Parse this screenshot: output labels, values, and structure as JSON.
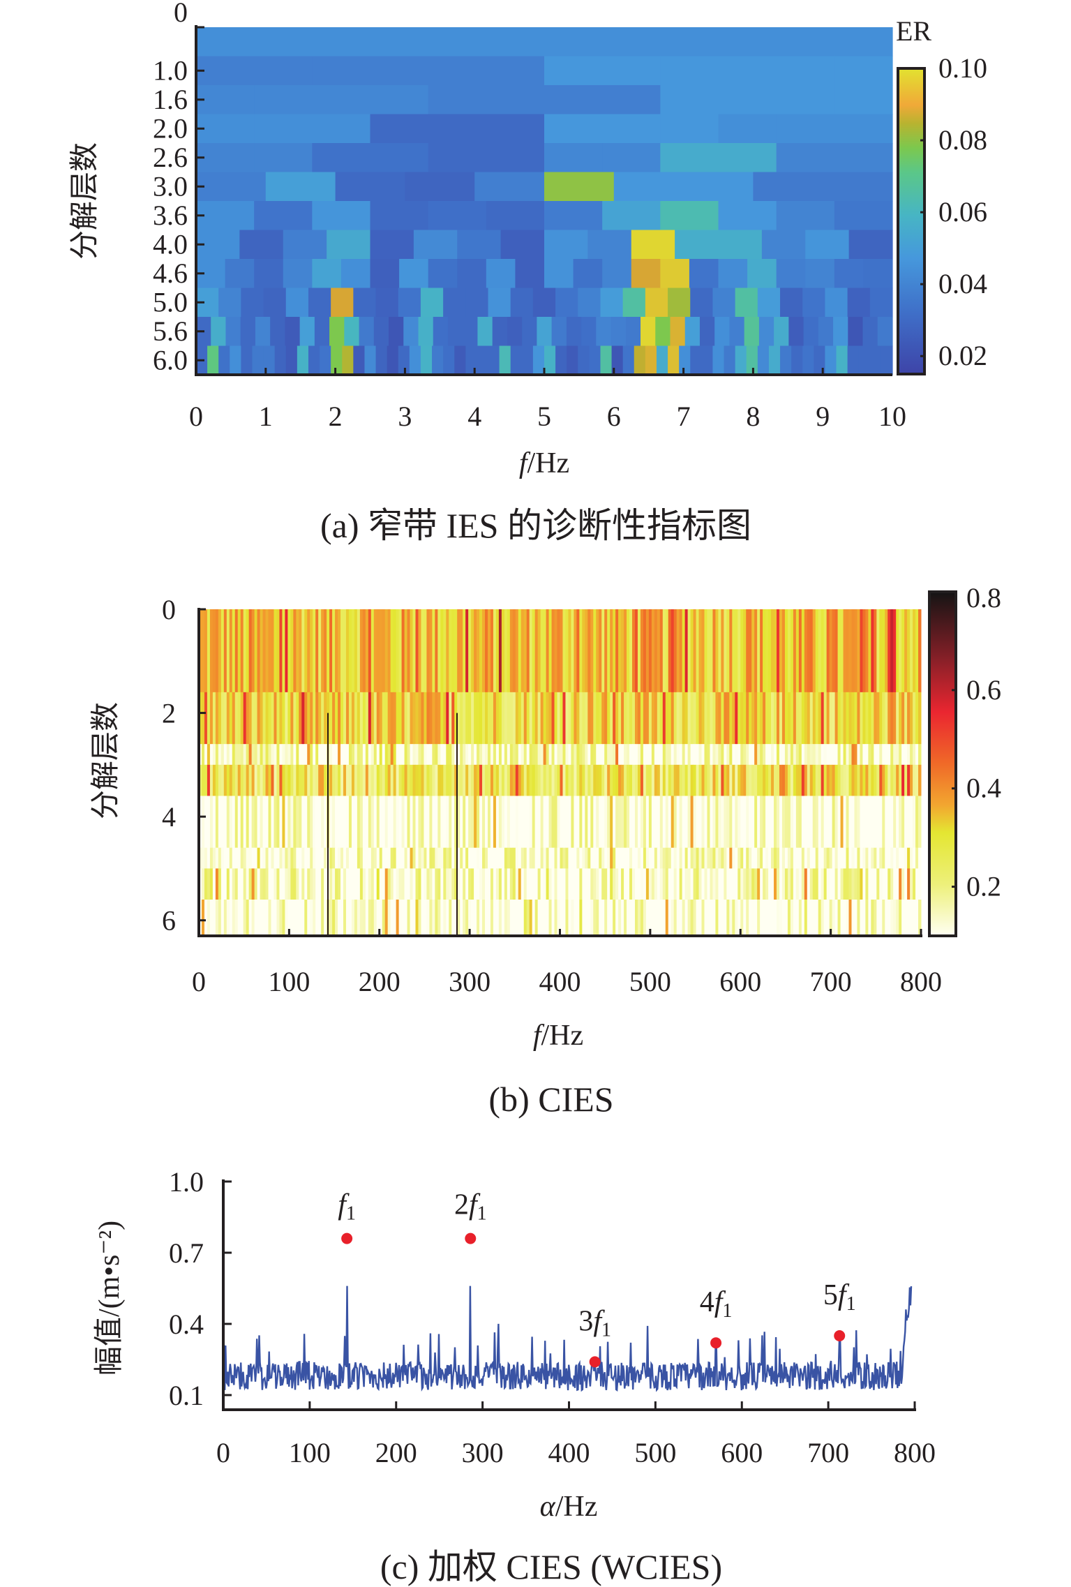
{
  "chart_data": [
    {
      "id": "a",
      "type": "heatmap",
      "caption": "(a) 窄带 IES 的诊断性指标图",
      "xlabel_italic": "f",
      "xlabel_rest": "/Hz",
      "ylabel": "分解层数",
      "xlim": [
        0,
        10
      ],
      "x_ticks": [
        "0",
        "1",
        "2",
        "3",
        "4",
        "5",
        "6",
        "7",
        "8",
        "9",
        "10"
      ],
      "y_ticks": [
        "0",
        "1.0",
        "1.6",
        "2.0",
        "2.6",
        "3.0",
        "3.6",
        "4.0",
        "4.6",
        "5.0",
        "5.6",
        "6.0"
      ],
      "colorbar": {
        "title": "ER",
        "range": [
          0.015,
          0.1
        ],
        "ticks": [
          "0.02",
          "0.04",
          "0.06",
          "0.08",
          "0.10"
        ],
        "tick_values": [
          0.02,
          0.04,
          0.06,
          0.08,
          0.1
        ],
        "colormap": "parula"
      },
      "rows": [
        {
          "level": "0",
          "values": [
            0.044
          ]
        },
        {
          "level": "1.0",
          "values": [
            0.038,
            0.038,
            0.038,
            0.038,
            0.038,
            0.038,
            0.047,
            0.047,
            0.047,
            0.047,
            0.047,
            0.047
          ]
        },
        {
          "level": "1.6",
          "values": [
            0.041,
            0.041,
            0.041,
            0.041,
            0.038,
            0.038,
            0.038,
            0.038,
            0.047,
            0.047,
            0.047,
            0.047
          ]
        },
        {
          "level": "2.0",
          "values": [
            0.044,
            0.044,
            0.044,
            0.03,
            0.03,
            0.03,
            0.047,
            0.047,
            0.047,
            0.044,
            0.044,
            0.044
          ]
        },
        {
          "level": "2.6",
          "values": [
            0.04,
            0.04,
            0.033,
            0.033,
            0.03,
            0.03,
            0.041,
            0.041,
            0.055,
            0.055,
            0.04,
            0.04
          ]
        },
        {
          "level": "3.0",
          "values": [
            0.038,
            0.05,
            0.03,
            0.028,
            0.038,
            0.08,
            0.047,
            0.047,
            0.036,
            0.036
          ]
        },
        {
          "level": "3.6",
          "values": [
            0.044,
            0.034,
            0.046,
            0.03,
            0.032,
            0.03,
            0.037,
            0.052,
            0.063,
            0.047,
            0.04,
            0.035
          ]
        },
        {
          "level": "4.0",
          "values": [
            0.044,
            0.028,
            0.038,
            0.054,
            0.027,
            0.042,
            0.035,
            0.026,
            0.045,
            0.04,
            0.098,
            0.056,
            0.056,
            0.04,
            0.046,
            0.028
          ]
        },
        {
          "level": "4.6",
          "values": [
            0.044,
            0.036,
            0.03,
            0.04,
            0.052,
            0.044,
            0.026,
            0.046,
            0.033,
            0.03,
            0.044,
            0.026,
            0.045,
            0.033,
            0.04,
            0.09,
            0.096,
            0.034,
            0.043,
            0.055,
            0.038,
            0.04,
            0.034,
            0.033
          ]
        },
        {
          "level": "5.0",
          "values": [
            0.05,
            0.04,
            0.03,
            0.028,
            0.044,
            0.03,
            0.09,
            0.03,
            0.027,
            0.034,
            0.058,
            0.03,
            0.03,
            0.045,
            0.03,
            0.026,
            0.034,
            0.039,
            0.049,
            0.066,
            0.095,
            0.082,
            0.03,
            0.039,
            0.066,
            0.049,
            0.028,
            0.034,
            0.044,
            0.027,
            0.032
          ]
        },
        {
          "level": "5.6",
          "values": [
            0.03,
            0.056,
            0.038,
            0.03,
            0.04,
            0.028,
            0.024,
            0.05,
            0.03,
            0.078,
            0.06,
            0.036,
            0.028,
            0.022,
            0.042,
            0.057,
            0.032,
            0.03,
            0.03,
            0.056,
            0.028,
            0.026,
            0.03,
            0.052,
            0.036,
            0.03,
            0.032,
            0.04,
            0.038,
            0.036,
            0.098,
            0.078,
            0.092,
            0.05,
            0.028,
            0.044,
            0.038,
            0.068,
            0.042,
            0.055,
            0.025,
            0.032,
            0.036,
            0.046,
            0.022,
            0.03,
            0.036
          ]
        },
        {
          "level": "6.0",
          "values": [
            0.03,
            0.072,
            0.033,
            0.044,
            0.03,
            0.036,
            0.036,
            0.028,
            0.024,
            0.058,
            0.03,
            0.034,
            0.078,
            0.084,
            0.024,
            0.042,
            0.028,
            0.022,
            0.03,
            0.044,
            0.058,
            0.036,
            0.032,
            0.024,
            0.03,
            0.03,
            0.03,
            0.062,
            0.03,
            0.03,
            0.046,
            0.058,
            0.028,
            0.024,
            0.03,
            0.032,
            0.066,
            0.022,
            0.034,
            0.086,
            0.092,
            0.055,
            0.094,
            0.044,
            0.03,
            0.03,
            0.044,
            0.036,
            0.055,
            0.066,
            0.042,
            0.055,
            0.036,
            0.03,
            0.034,
            0.03,
            0.044,
            0.058,
            0.03,
            0.03,
            0.03,
            0.03
          ]
        }
      ]
    },
    {
      "id": "b",
      "type": "heatmap",
      "caption": "(b) CIES",
      "xlabel_italic": "f",
      "xlabel_rest": "/Hz",
      "ylabel": "分解层数",
      "xlim": [
        0,
        800
      ],
      "ylim": [
        0,
        6.3
      ],
      "x_ticks": [
        "0",
        "100",
        "200",
        "300",
        "400",
        "500",
        "600",
        "700",
        "800"
      ],
      "x_tick_values": [
        0,
        100,
        200,
        300,
        400,
        500,
        600,
        700,
        800
      ],
      "y_ticks": [
        "0",
        "2",
        "4",
        "6"
      ],
      "y_tick_values": [
        0,
        2,
        4,
        6
      ],
      "colorbar": {
        "range": [
          0.1,
          0.8
        ],
        "ticks": [
          "0.2",
          "0.4",
          "0.6",
          "0.8"
        ],
        "tick_values": [
          0.2,
          0.4,
          0.6,
          0.8
        ],
        "colormap": "hot (reversed)"
      },
      "band_boundaries": [
        0,
        1.6,
        2.6,
        3.0,
        3.6,
        4.6,
        5.0,
        5.6,
        6.3
      ],
      "band_mean_values": [
        0.34,
        0.3,
        0.18,
        0.27,
        0.14,
        0.16,
        0.17,
        0.14
      ],
      "highlight_lines_hz": [
        143,
        286
      ]
    },
    {
      "id": "c",
      "type": "line",
      "caption": "(c) 加权 CIES (WCIES)",
      "xlabel_italic": "α",
      "xlabel_rest": "/Hz",
      "ylabel": "幅值/(m•s⁻²)",
      "xlim": [
        0,
        800
      ],
      "ylim": [
        0.05,
        1.0
      ],
      "x_ticks": [
        "0",
        "100",
        "200",
        "300",
        "400",
        "500",
        "600",
        "700",
        "800"
      ],
      "x_tick_values": [
        0,
        100,
        200,
        300,
        400,
        500,
        600,
        700,
        800
      ],
      "y_ticks": [
        "0.1",
        "0.4",
        "0.7",
        "1.0"
      ],
      "y_tick_values": [
        0.1,
        0.4,
        0.7,
        1.0
      ],
      "series": [
        {
          "name": "WCIES",
          "color": "#3953a4",
          "baseline": 0.18,
          "noise_amp": 0.06,
          "end_value": 0.56
        }
      ],
      "peaks": [
        {
          "label_num": "",
          "label": "f1",
          "x": 143,
          "y": 0.76
        },
        {
          "label_num": "2",
          "label": "2f1",
          "x": 286,
          "y": 0.76
        },
        {
          "label_num": "3",
          "label": "3f1",
          "x": 430,
          "y": 0.24
        },
        {
          "label_num": "4",
          "label": "4f1",
          "x": 570,
          "y": 0.32
        },
        {
          "label_num": "5",
          "label": "5f1",
          "x": 713,
          "y": 0.35
        }
      ],
      "peak_marker_color": "#e8202a",
      "peak_label_italic": "f",
      "peak_label_sub": "1"
    }
  ]
}
